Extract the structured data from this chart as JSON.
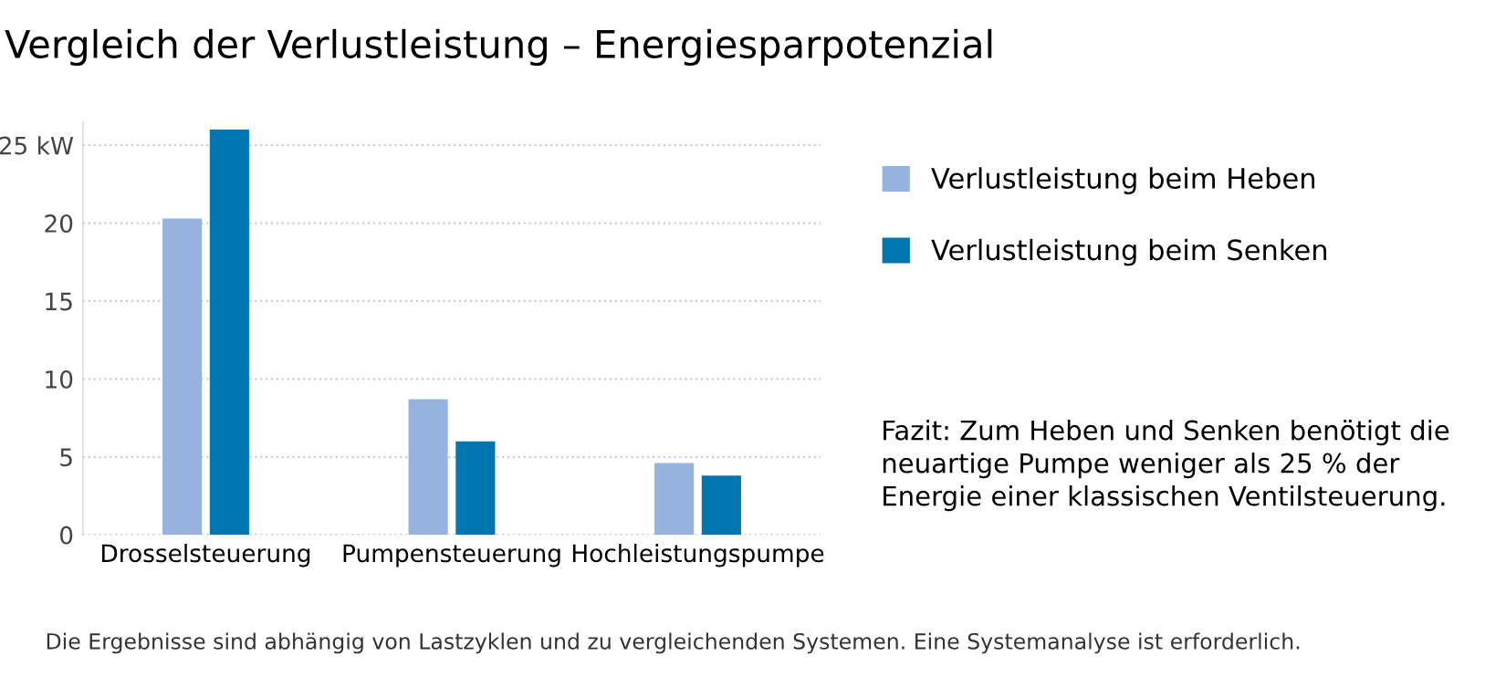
{
  "chart_data": {
    "type": "bar",
    "title": "Vergleich der Verlustleistung – Energiesparpotenzial",
    "categories": [
      "Drosselsteuerung",
      "Pumpensteuerung",
      "Hochleistungspumpe"
    ],
    "series": [
      {
        "name": "Verlustleistung beim Heben",
        "color": "#95b3de",
        "values": [
          20.3,
          8.7,
          4.6
        ]
      },
      {
        "name": "Verlustleistung beim Senken",
        "color": "#0076b0",
        "values": [
          26,
          6,
          3.8
        ]
      }
    ],
    "ylim": [
      0,
      26.5
    ],
    "yticks": [
      0,
      5,
      10,
      15,
      20,
      {
        "value": 25,
        "label": "25 kW"
      }
    ],
    "grid": "y",
    "legend": "right",
    "annotations": [
      "Fazit: Zum Heben und Senken benötigt die neuartige Pumpe weniger als 25 % der Energie einer klassischen Ventilsteuerung.",
      "Die Ergebnisse sind abhängig von Lastzyklen und zu vergleichenden Systemen. Eine Systemanalyse ist erforderlich."
    ]
  }
}
